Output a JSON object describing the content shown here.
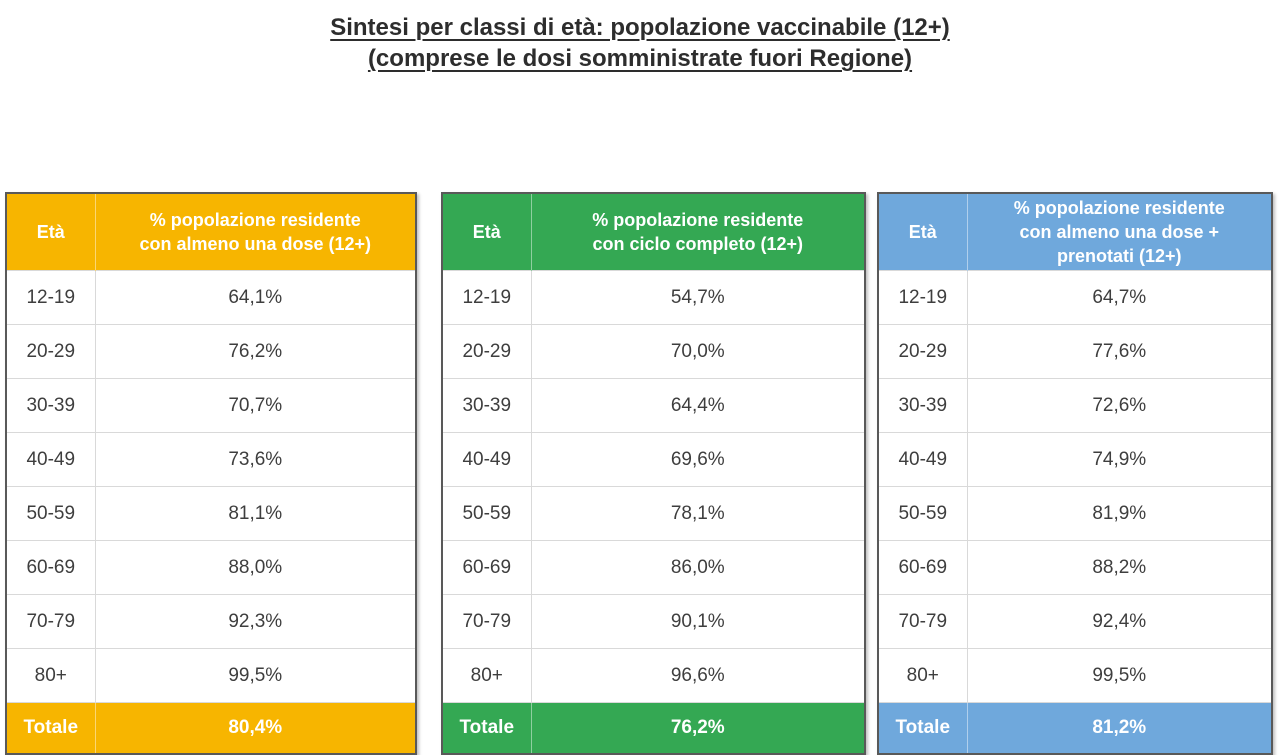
{
  "page": {
    "title_line1": "Sintesi per classi di età: popolazione vaccinabile (12+)",
    "title_line2": "(comprese le dosi somministrate fuori Regione)"
  },
  "tables": [
    {
      "id": "almeno-una-dose",
      "accent": "#F7B500",
      "header": {
        "age_label": "Età",
        "value_label": "% popolazione residente con almeno una dose (12+)",
        "lines": [
          "% popolazione residente",
          "con almeno una dose (12+)"
        ]
      },
      "rows": [
        {
          "age": "12-19",
          "value": "64,1%"
        },
        {
          "age": "20-29",
          "value": "76,2%"
        },
        {
          "age": "30-39",
          "value": "70,7%"
        },
        {
          "age": "40-49",
          "value": "73,6%"
        },
        {
          "age": "50-59",
          "value": "81,1%"
        },
        {
          "age": "60-69",
          "value": "88,0%"
        },
        {
          "age": "70-79",
          "value": "92,3%"
        },
        {
          "age": "80+",
          "value": "99,5%"
        }
      ],
      "total": {
        "label": "Totale",
        "value": "80,4%"
      }
    },
    {
      "id": "ciclo-completo",
      "accent": "#34A853",
      "header": {
        "age_label": "Età",
        "value_label": "% popolazione residente con ciclo completo (12+)",
        "lines": [
          "% popolazione residente",
          "con ciclo completo (12+)"
        ]
      },
      "rows": [
        {
          "age": "12-19",
          "value": "54,7%"
        },
        {
          "age": "20-29",
          "value": "70,0%"
        },
        {
          "age": "30-39",
          "value": "64,4%"
        },
        {
          "age": "40-49",
          "value": "69,6%"
        },
        {
          "age": "50-59",
          "value": "78,1%"
        },
        {
          "age": "60-69",
          "value": "86,0%"
        },
        {
          "age": "70-79",
          "value": "90,1%"
        },
        {
          "age": "80+",
          "value": "96,6%"
        }
      ],
      "total": {
        "label": "Totale",
        "value": "76,2%"
      }
    },
    {
      "id": "almeno-una-dose-prenotati",
      "accent": "#6FA8DC",
      "header": {
        "age_label": "Età",
        "value_label": "% popolazione residente con almeno una dose + prenotati (12+)",
        "lines": [
          "% popolazione residente",
          "con almeno una dose +",
          "prenotati (12+)"
        ]
      },
      "rows": [
        {
          "age": "12-19",
          "value": "64,7%"
        },
        {
          "age": "20-29",
          "value": "77,6%"
        },
        {
          "age": "30-39",
          "value": "72,6%"
        },
        {
          "age": "40-49",
          "value": "74,9%"
        },
        {
          "age": "50-59",
          "value": "81,9%"
        },
        {
          "age": "60-69",
          "value": "88,2%"
        },
        {
          "age": "70-79",
          "value": "92,4%"
        },
        {
          "age": "80+",
          "value": "99,5%"
        }
      ],
      "total": {
        "label": "Totale",
        "value": "81,2%"
      }
    }
  ]
}
